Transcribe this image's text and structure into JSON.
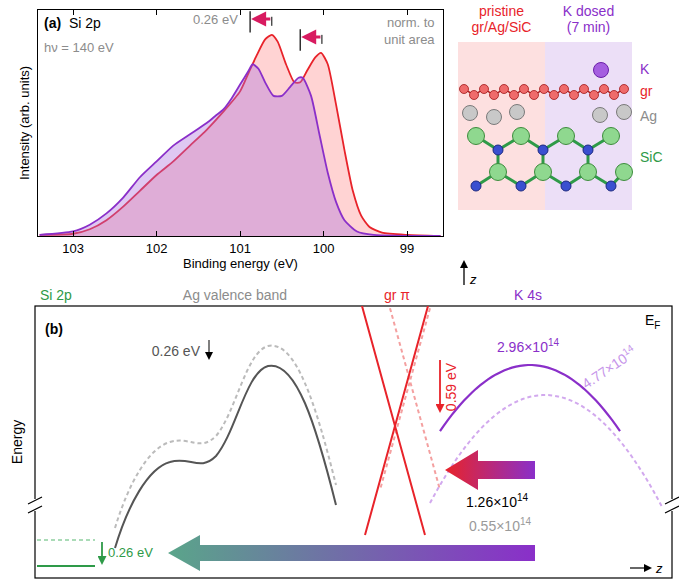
{
  "chart_data": {
    "type": "line",
    "panel": "(a)",
    "title": "Si 2p",
    "photon_energy": "hν = 140 eV",
    "normalization": "norm. to unit area",
    "x_label": "Binding energy (eV)",
    "y_label": "Intensity (arb. units)",
    "xlim": [
      103.42,
      98.57
    ],
    "xticks": [
      103,
      102,
      101,
      100,
      99
    ],
    "ylim": [
      0,
      1
    ],
    "yticks": [],
    "tick_labels": "x",
    "series": [
      {
        "color": "#e8232a",
        "x": [
          103.4,
          103.0,
          102.8,
          102.6,
          102.4,
          102.2,
          102.0,
          101.8,
          101.6,
          101.4,
          101.2,
          101.0,
          100.9,
          100.8,
          100.7,
          100.62,
          100.55,
          100.45,
          100.35,
          100.28,
          100.2,
          100.1,
          100.03,
          99.95,
          99.85,
          99.75,
          99.65,
          99.55,
          99.45,
          99.3,
          99.0,
          98.6
        ],
        "values": [
          0.005,
          0.01,
          0.03,
          0.07,
          0.13,
          0.2,
          0.27,
          0.33,
          0.4,
          0.47,
          0.55,
          0.64,
          0.72,
          0.8,
          0.87,
          0.89,
          0.86,
          0.76,
          0.68,
          0.68,
          0.73,
          0.79,
          0.81,
          0.76,
          0.58,
          0.38,
          0.2,
          0.09,
          0.04,
          0.015,
          0.005,
          0.0
        ]
      },
      {
        "color": "#8a2fc9",
        "x": [
          103.4,
          103.0,
          102.8,
          102.6,
          102.4,
          102.2,
          102.0,
          101.8,
          101.6,
          101.4,
          101.3,
          101.2,
          101.1,
          101.0,
          100.9,
          100.85,
          100.78,
          100.7,
          100.6,
          100.5,
          100.4,
          100.3,
          100.25,
          100.15,
          100.05,
          99.95,
          99.85,
          99.75,
          99.6,
          99.4,
          98.6
        ],
        "values": [
          0.005,
          0.02,
          0.05,
          0.1,
          0.17,
          0.26,
          0.33,
          0.4,
          0.45,
          0.5,
          0.53,
          0.56,
          0.61,
          0.67,
          0.73,
          0.76,
          0.74,
          0.68,
          0.62,
          0.62,
          0.66,
          0.7,
          0.7,
          0.62,
          0.45,
          0.28,
          0.15,
          0.07,
          0.02,
          0.005,
          0.0
        ]
      }
    ],
    "shift": {
      "label": "0.26 eV",
      "color": "#d81b60",
      "arrows": [
        {
          "from": 100.62,
          "to": 100.88,
          "y": 0.96
        },
        {
          "from": 100.02,
          "to": 100.28,
          "y": 0.88
        }
      ]
    }
  },
  "schematic": {
    "columns": [
      {
        "label": "pristine gr/Ag/SiC",
        "color": "#e8232a",
        "ground": "#fde0e0"
      },
      {
        "label": "K dosed (7 min)",
        "color": "#8a2fc9",
        "ground": "#ecdff7"
      }
    ],
    "layers": [
      {
        "label": "K",
        "color": "#8a2fc9"
      },
      {
        "label": "gr",
        "color": "#e8232a"
      },
      {
        "label": "Ag",
        "color": "#8c8c8c"
      },
      {
        "label": "SiC",
        "color": "#2e9a48"
      }
    ],
    "axis": "z"
  },
  "diagram": {
    "panel": "(b)",
    "y_label": "Energy",
    "x_label": "z",
    "fermi_level": {
      "base": "E",
      "sub": "F"
    },
    "columns": [
      {
        "label": "Si 2p",
        "color": "#2e9a48"
      },
      {
        "label": "Ag valence band",
        "color": "#8c8c8c"
      },
      {
        "label": "gr π",
        "color": "#e8232a"
      },
      {
        "label": "K 4s",
        "color": "#8a2fc9"
      }
    ],
    "shifts": {
      "Ag": "0.26 eV",
      "gr": "0.59 eV",
      "Si": "0.26 eV"
    },
    "densities": {
      "K_solid": {
        "base": "2.96×10",
        "exp": "14"
      },
      "K_dashed": {
        "base": "4.77×10",
        "exp": "14"
      },
      "to_gr": {
        "base": "1.26×10",
        "exp": "14"
      },
      "to_Si": {
        "base": "0.55×10",
        "exp": "14"
      }
    }
  }
}
